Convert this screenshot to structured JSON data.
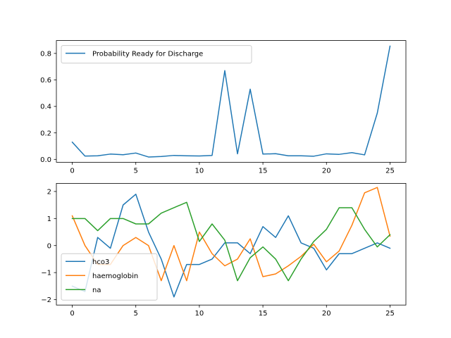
{
  "chart_data": [
    {
      "type": "line",
      "title": "",
      "xlabel": "",
      "ylabel": "",
      "xlim": [
        -1.25,
        26.25
      ],
      "ylim": [
        -0.0216,
        0.897
      ],
      "xticks": [
        0,
        5,
        10,
        15,
        20,
        25
      ],
      "yticks": [
        0.0,
        0.2,
        0.4,
        0.6,
        0.8
      ],
      "ytick_labels": [
        "0.0",
        "0.2",
        "0.4",
        "0.6",
        "0.8"
      ],
      "legend": "upper left",
      "x": [
        0,
        1,
        2,
        3,
        4,
        5,
        6,
        7,
        8,
        9,
        10,
        11,
        12,
        13,
        14,
        15,
        16,
        17,
        18,
        19,
        20,
        21,
        22,
        23,
        24,
        25
      ],
      "series": [
        {
          "name": "Probability Ready for Discharge",
          "color": "#1f77b4",
          "values": [
            0.13,
            0.025,
            0.027,
            0.04,
            0.035,
            0.048,
            0.018,
            0.022,
            0.03,
            0.027,
            0.026,
            0.03,
            0.67,
            0.042,
            0.53,
            0.04,
            0.043,
            0.027,
            0.027,
            0.024,
            0.042,
            0.038,
            0.051,
            0.034,
            0.35,
            0.855
          ]
        }
      ]
    },
    {
      "type": "line",
      "title": "",
      "xlabel": "",
      "ylabel": "",
      "xlim": [
        -1.25,
        26.25
      ],
      "ylim": [
        -2.2,
        2.3
      ],
      "xticks": [
        0,
        5,
        10,
        15,
        20,
        25
      ],
      "yticks": [
        -2,
        -1,
        0,
        1,
        2
      ],
      "ytick_labels": [
        "−2",
        "−1",
        "0",
        "1",
        "2"
      ],
      "legend": "lower left",
      "x": [
        0,
        1,
        2,
        3,
        4,
        5,
        6,
        7,
        8,
        9,
        10,
        11,
        12,
        13,
        14,
        15,
        16,
        17,
        18,
        19,
        20,
        21,
        22,
        23,
        24,
        25
      ],
      "series": [
        {
          "name": "hco3",
          "color": "#1f77b4",
          "values": [
            -1.5,
            -1.7,
            0.3,
            -0.1,
            1.5,
            1.9,
            0.5,
            -0.5,
            -1.9,
            -0.7,
            -0.7,
            -0.5,
            0.1,
            0.1,
            -0.3,
            0.7,
            0.3,
            1.1,
            0.1,
            -0.1,
            -0.9,
            -0.3,
            -0.3,
            -0.1,
            0.1,
            -0.1
          ]
        },
        {
          "name": "haemoglobin",
          "color": "#ff7f0e",
          "values": [
            1.1,
            0.0,
            -0.7,
            -0.7,
            0.0,
            0.3,
            0.0,
            -1.3,
            0.0,
            -1.3,
            0.5,
            -0.3,
            -0.75,
            -0.5,
            0.25,
            -1.15,
            -1.05,
            -0.75,
            -0.4,
            0.05,
            -0.6,
            -0.2,
            0.75,
            1.95,
            2.15,
            0.35
          ]
        },
        {
          "name": "na",
          "color": "#2ca02c",
          "values": [
            1.0,
            1.0,
            0.55,
            1.0,
            1.0,
            0.8,
            0.8,
            1.2,
            1.4,
            1.6,
            0.15,
            0.8,
            0.2,
            -1.3,
            -0.45,
            -0.05,
            -0.5,
            -1.3,
            -0.5,
            0.15,
            0.6,
            1.4,
            1.4,
            0.6,
            -0.05,
            0.4
          ]
        }
      ]
    }
  ]
}
